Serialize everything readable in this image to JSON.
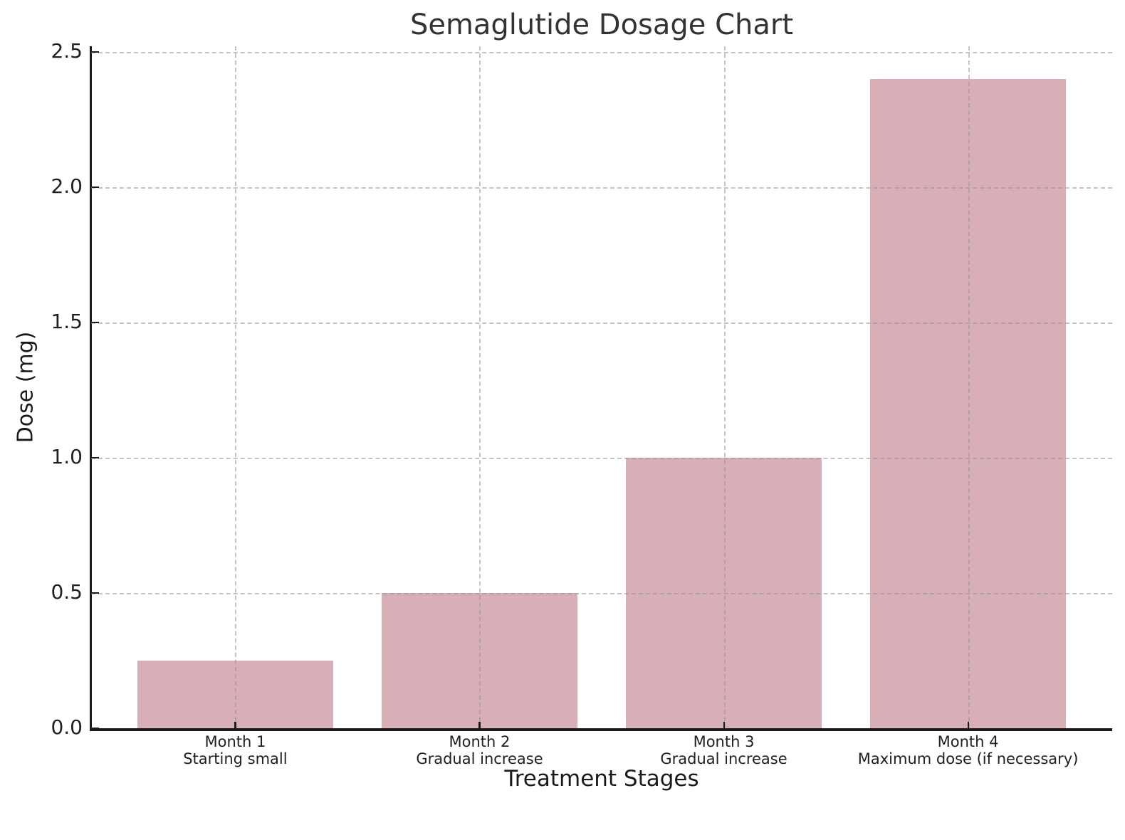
{
  "figure": {
    "title": "Semaglutide Dosage Chart",
    "background_color": "#ffffff"
  },
  "chart_data": {
    "type": "bar",
    "title": "Semaglutide Dosage Chart",
    "xlabel": "Treatment Stages",
    "ylabel": "Dose (mg)",
    "categories": [
      "Month 1",
      "Month 2",
      "Month 3",
      "Month 4"
    ],
    "category_notes": [
      "Starting small",
      "Gradual increase",
      "Gradual increase",
      "Maximum dose (if necessary)"
    ],
    "values": [
      0.25,
      0.5,
      1.0,
      2.4
    ],
    "unit": "mg",
    "ylim": [
      0,
      2.52
    ],
    "yticks": [
      0.0,
      0.5,
      1.0,
      1.5,
      2.0,
      2.5
    ],
    "ytick_labels": [
      "0.0",
      "0.5",
      "1.0",
      "1.5",
      "2.0",
      "2.5"
    ],
    "grid": true,
    "grid_style": "dashed",
    "grid_axes": "both",
    "legend": false,
    "bar_width_fraction": 0.8,
    "colors": {
      "bar_fill": "#d8aeb7",
      "grid": "#c9c9c9",
      "spine": "#1a1a1a",
      "title_text": "#333333",
      "label_text": "#1a1a1a",
      "tick_text": "#1f1f1f",
      "background": "#ffffff"
    }
  }
}
